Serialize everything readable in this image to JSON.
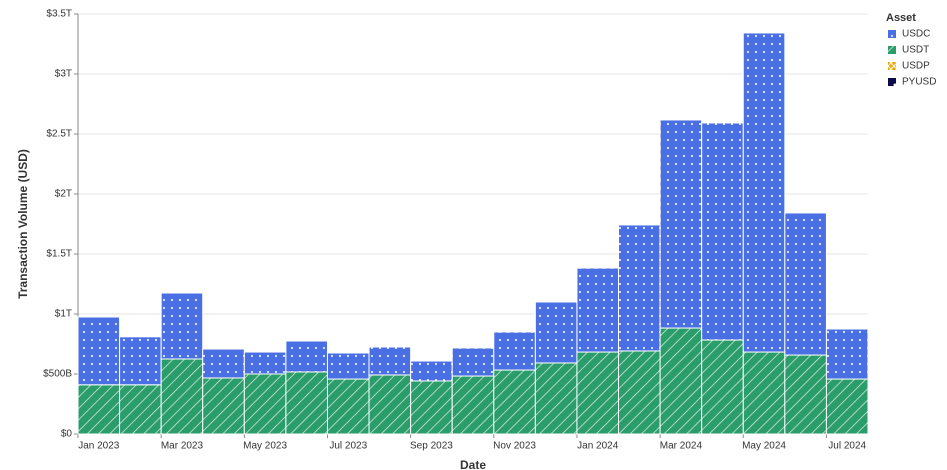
{
  "chart_data": {
    "type": "stacked_bar",
    "x_label": "Date",
    "y_label": "Transaction Volume (USD)",
    "legend_title": "Asset",
    "legend_position": "right",
    "categories": [
      "Jan 2023",
      null,
      "Mar 2023",
      null,
      "May 2023",
      null,
      "Jul 2023",
      null,
      "Sep 2023",
      null,
      "Nov 2023",
      null,
      "Jan 2024",
      null,
      "Mar 2024",
      null,
      "May 2024",
      null,
      "Jul 2024"
    ],
    "series": [
      {
        "name": "USDT",
        "color": "#2a9d6a",
        "pattern": "stripes",
        "values": [
          410000000000.0,
          410000000000.0,
          625000000000.0,
          467000000000.0,
          500000000000.0,
          517000000000.0,
          458000000000.0,
          492000000000.0,
          442000000000.0,
          483000000000.0,
          533000000000.0,
          592000000000.0,
          683000000000.0,
          692000000000.0,
          883000000000.0,
          783000000000.0,
          683000000000.0,
          658000000000.0,
          458000000000.0
        ]
      },
      {
        "name": "USDC",
        "color": "#4a6fe3",
        "pattern": "dots",
        "values": [
          565000000000.0,
          400000000000.0,
          550000000000.0,
          241000000000.0,
          183000000000.0,
          258000000000.0,
          217000000000.0,
          233000000000.0,
          166000000000.0,
          234000000000.0,
          317000000000.0,
          508000000000.0,
          700000000000.0,
          1050000000000.0,
          1734000000000.0,
          1809000000000.0,
          2659000000000.0,
          1184000000000.0,
          417000000000.0
        ]
      },
      {
        "name": "USDP",
        "color": "#f0a500",
        "pattern": "cross",
        "values": [
          0,
          0,
          0,
          0,
          0,
          0,
          0,
          0,
          0,
          0,
          0,
          0,
          0,
          0,
          0,
          0,
          0,
          0,
          0
        ]
      },
      {
        "name": "PYUSD",
        "color": "#0b0b4a",
        "pattern": "dot",
        "values": [
          0,
          0,
          0,
          0,
          0,
          0,
          0,
          0,
          0,
          0,
          0,
          0,
          0,
          0,
          0,
          0,
          0,
          0,
          0
        ]
      }
    ],
    "ylim": [
      0,
      3500000000000.0
    ],
    "yticks": [
      {
        "value": 0,
        "label": "$0"
      },
      {
        "value": 500000000000.0,
        "label": "$500B"
      },
      {
        "value": 1000000000000.0,
        "label": "$1T"
      },
      {
        "value": 1500000000000.0,
        "label": "$1.5T"
      },
      {
        "value": 2000000000000.0,
        "label": "$2T"
      },
      {
        "value": 2500000000000.0,
        "label": "$2.5T"
      },
      {
        "value": 3000000000000.0,
        "label": "$3T"
      },
      {
        "value": 3500000000000.0,
        "label": "$3.5T"
      }
    ],
    "grid": true
  }
}
